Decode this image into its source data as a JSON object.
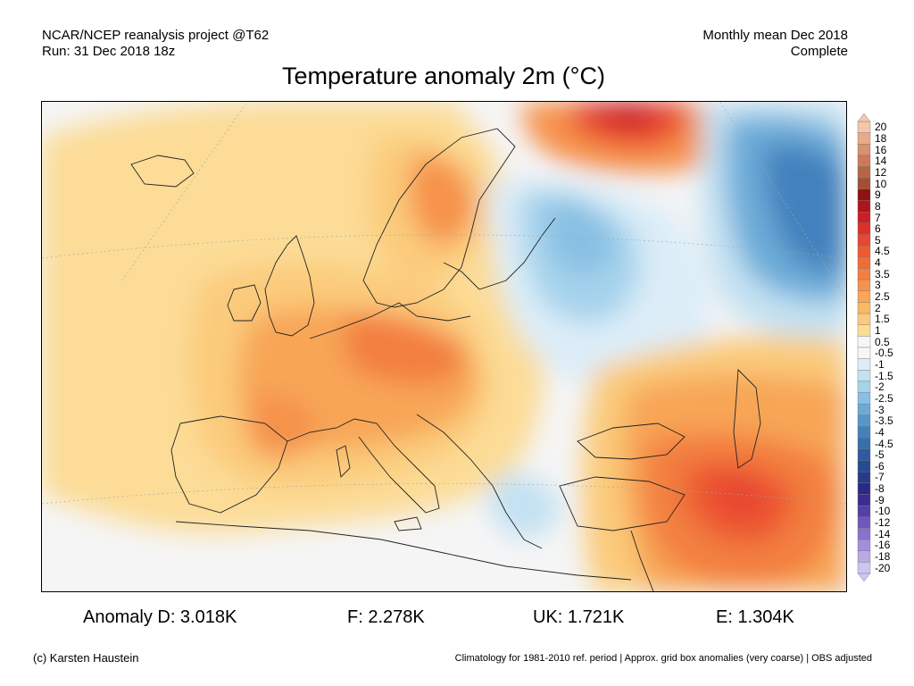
{
  "header": {
    "line1_left": "NCAR/NCEP reanalysis project @T62",
    "line2_left": "Run: 31 Dec 2018 18z",
    "line1_right": "Monthly mean Dec 2018",
    "line2_right": "Complete"
  },
  "title": "Temperature anomaly 2m (°C)",
  "legend": {
    "levels": [
      {
        "label": "20",
        "color": "#f4c6a8"
      },
      {
        "label": "18",
        "color": "#e8aa8a"
      },
      {
        "label": "16",
        "color": "#d9916f"
      },
      {
        "label": "14",
        "color": "#c97b59"
      },
      {
        "label": "12",
        "color": "#b76544"
      },
      {
        "label": "10",
        "color": "#a34f33"
      },
      {
        "label": "9",
        "color": "#8f1111"
      },
      {
        "label": "8",
        "color": "#b0141b"
      },
      {
        "label": "7",
        "color": "#cc1f24"
      },
      {
        "label": "6",
        "color": "#dd2f2b"
      },
      {
        "label": "5",
        "color": "#e84630"
      },
      {
        "label": "4.5",
        "color": "#ed5a33"
      },
      {
        "label": "4",
        "color": "#f06c38"
      },
      {
        "label": "3.5",
        "color": "#f37f40"
      },
      {
        "label": "3",
        "color": "#f6924b"
      },
      {
        "label": "2.5",
        "color": "#f8a657"
      },
      {
        "label": "2",
        "color": "#fab867"
      },
      {
        "label": "1.5",
        "color": "#fbcb7c"
      },
      {
        "label": "1",
        "color": "#fcdc96"
      },
      {
        "label": "0.5",
        "color": "#f6f6f6"
      },
      {
        "label": "-0.5",
        "color": "#f6f6f6"
      },
      {
        "label": "-1",
        "color": "#dcedf8"
      },
      {
        "label": "-1.5",
        "color": "#c2e1f2"
      },
      {
        "label": "-2",
        "color": "#a6d3ec"
      },
      {
        "label": "-2.5",
        "color": "#88c0e3"
      },
      {
        "label": "-3",
        "color": "#6cabd8"
      },
      {
        "label": "-3.5",
        "color": "#5596cb"
      },
      {
        "label": "-4",
        "color": "#4381bd"
      },
      {
        "label": "-4.5",
        "color": "#386dae"
      },
      {
        "label": "-5",
        "color": "#2f5a9f"
      },
      {
        "label": "-6",
        "color": "#274a92"
      },
      {
        "label": "-7",
        "color": "#253c89"
      },
      {
        "label": "-8",
        "color": "#2a2a85"
      },
      {
        "label": "-9",
        "color": "#3d2b90"
      },
      {
        "label": "-10",
        "color": "#5540a6"
      },
      {
        "label": "-12",
        "color": "#6d58bb"
      },
      {
        "label": "-14",
        "color": "#8872cc"
      },
      {
        "label": "-16",
        "color": "#a18fdb"
      },
      {
        "label": "-18",
        "color": "#b8aae6"
      },
      {
        "label": "-20",
        "color": "#cfc4f0"
      }
    ]
  },
  "anomalies": [
    {
      "label": "Anomaly D: 3.018K"
    },
    {
      "label": "F: 2.278K"
    },
    {
      "label": "UK: 1.721K"
    },
    {
      "label": "E: 1.304K"
    }
  ],
  "footer": {
    "copyright": "(c) Karsten Haustein",
    "note": "Climatology for 1981-2010 ref. period | Approx. grid box anomalies (very coarse) | OBS adjusted"
  }
}
